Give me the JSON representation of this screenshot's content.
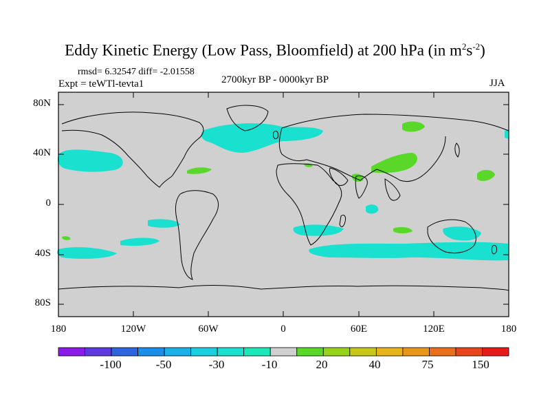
{
  "title_main": "Eddy Kinetic Energy (Low Pass, Bloomfield) at 200 hPa (in m",
  "title_exp1": "2",
  "title_mid": "s",
  "title_exp2": "-2",
  "title_end": ")",
  "stats": "rmsd= 6.32547  diff= -2.01558",
  "experiment": "Expt = teWTl-tevta1",
  "period": "2700kyr BP - 0000kyr BP",
  "season": "JJA",
  "lat_labels": [
    "80N",
    "40N",
    "0",
    "40S",
    "80S"
  ],
  "lon_labels": [
    "180",
    "120W",
    "60W",
    "0",
    "60E",
    "120E",
    "180"
  ],
  "colorbar": {
    "labels": [
      "-100",
      "-50",
      "-30",
      "-10",
      "20",
      "40",
      "75",
      "150"
    ],
    "colors": [
      "#8a1ae8",
      "#5c3ae0",
      "#2e64e0",
      "#1a8ee8",
      "#1ab0e8",
      "#1acfe0",
      "#1ae0d0",
      "#1ae8b8",
      "#d0d0d0",
      "#5ad82a",
      "#96d21a",
      "#c8c81a",
      "#e6b41a",
      "#e8961a",
      "#e8701a",
      "#e8461a",
      "#e81a1a"
    ]
  },
  "map_colors": {
    "land_sea": "#d0d0d0",
    "negative": "#1ae0d0",
    "positive": "#5ad82a"
  }
}
